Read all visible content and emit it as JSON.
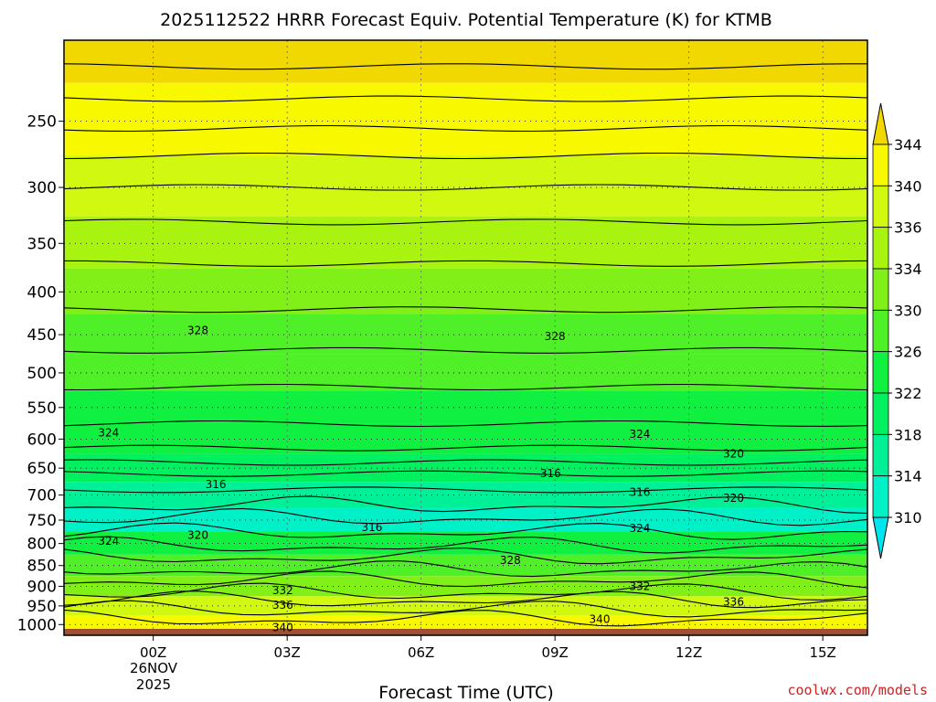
{
  "chart_data": {
    "type": "heatmap",
    "title": "2025112522 HRRR Forecast Equiv. Potential Temperature (K) for KTMB",
    "xlabel": "Forecast Time (UTC)",
    "ylabel": "",
    "x_ticks": [
      {
        "label": "00Z",
        "hours": 0
      },
      {
        "label": "03Z",
        "hours": 3
      },
      {
        "label": "06Z",
        "hours": 6
      },
      {
        "label": "09Z",
        "hours": 9
      },
      {
        "label": "12Z",
        "hours": 12
      },
      {
        "label": "15Z",
        "hours": 15
      }
    ],
    "x_range_hours": [
      -2,
      16
    ],
    "date_label_line1": "26NOV",
    "date_label_line2": "2025",
    "y_ticks": [
      250,
      300,
      350,
      400,
      450,
      500,
      550,
      600,
      650,
      700,
      750,
      800,
      850,
      900,
      950,
      1000
    ],
    "y_range_hpa": [
      200,
      1030
    ],
    "y_scale": "log",
    "grid": true,
    "colorbar": {
      "levels": [
        310,
        314,
        318,
        322,
        326,
        330,
        334,
        336,
        340,
        344
      ],
      "labels": [
        "344",
        "340",
        "336",
        "334",
        "330",
        "326",
        "322",
        "318",
        "314",
        "310"
      ],
      "colors": [
        "#00e4f0",
        "#00f0c8",
        "#00f098",
        "#00f060",
        "#10f040",
        "#50f028",
        "#80f018",
        "#a8f410",
        "#d0f810",
        "#f8f800",
        "#f0d800"
      ],
      "position": "right"
    },
    "levels_profile": [
      {
        "p": 200,
        "theta_e": 344
      },
      {
        "p": 250,
        "theta_e": 340
      },
      {
        "p": 300,
        "theta_e": 336
      },
      {
        "p": 350,
        "theta_e": 334
      },
      {
        "p": 400,
        "theta_e": 331
      },
      {
        "p": 450,
        "theta_e": 328
      },
      {
        "p": 500,
        "theta_e": 326
      },
      {
        "p": 550,
        "theta_e": 325
      },
      {
        "p": 600,
        "theta_e": 324
      },
      {
        "p": 650,
        "theta_e": 320
      },
      {
        "p": 700,
        "theta_e": 316
      },
      {
        "p": 750,
        "theta_e": 313
      },
      {
        "p": 800,
        "theta_e": 322
      },
      {
        "p": 850,
        "theta_e": 328
      },
      {
        "p": 900,
        "theta_e": 332
      },
      {
        "p": 950,
        "theta_e": 336
      },
      {
        "p": 1000,
        "theta_e": 340
      }
    ],
    "contour_labels": [
      {
        "text": "328",
        "hours": 1.0,
        "p": 445
      },
      {
        "text": "328",
        "hours": 9.0,
        "p": 452
      },
      {
        "text": "324",
        "hours": -1.0,
        "p": 590
      },
      {
        "text": "324",
        "hours": 10.9,
        "p": 592
      },
      {
        "text": "320",
        "hours": 13.0,
        "p": 625
      },
      {
        "text": "316",
        "hours": 8.9,
        "p": 660
      },
      {
        "text": "316",
        "hours": 1.4,
        "p": 680
      },
      {
        "text": "316",
        "hours": 10.9,
        "p": 695
      },
      {
        "text": "320",
        "hours": 13.0,
        "p": 706
      },
      {
        "text": "316",
        "hours": 4.9,
        "p": 765
      },
      {
        "text": "324",
        "hours": 10.9,
        "p": 767
      },
      {
        "text": "320",
        "hours": 1.0,
        "p": 782
      },
      {
        "text": "324",
        "hours": -1.0,
        "p": 795
      },
      {
        "text": "328",
        "hours": 8.0,
        "p": 838
      },
      {
        "text": "332",
        "hours": 2.9,
        "p": 910
      },
      {
        "text": "332",
        "hours": 10.9,
        "p": 900
      },
      {
        "text": "336",
        "hours": 2.9,
        "p": 948
      },
      {
        "text": "336",
        "hours": 13.0,
        "p": 940
      },
      {
        "text": "340",
        "hours": 10.0,
        "p": 985
      },
      {
        "text": "340",
        "hours": 2.9,
        "p": 1008
      }
    ],
    "surface_color": "#a05030",
    "credit": "coolwx.com/models"
  }
}
